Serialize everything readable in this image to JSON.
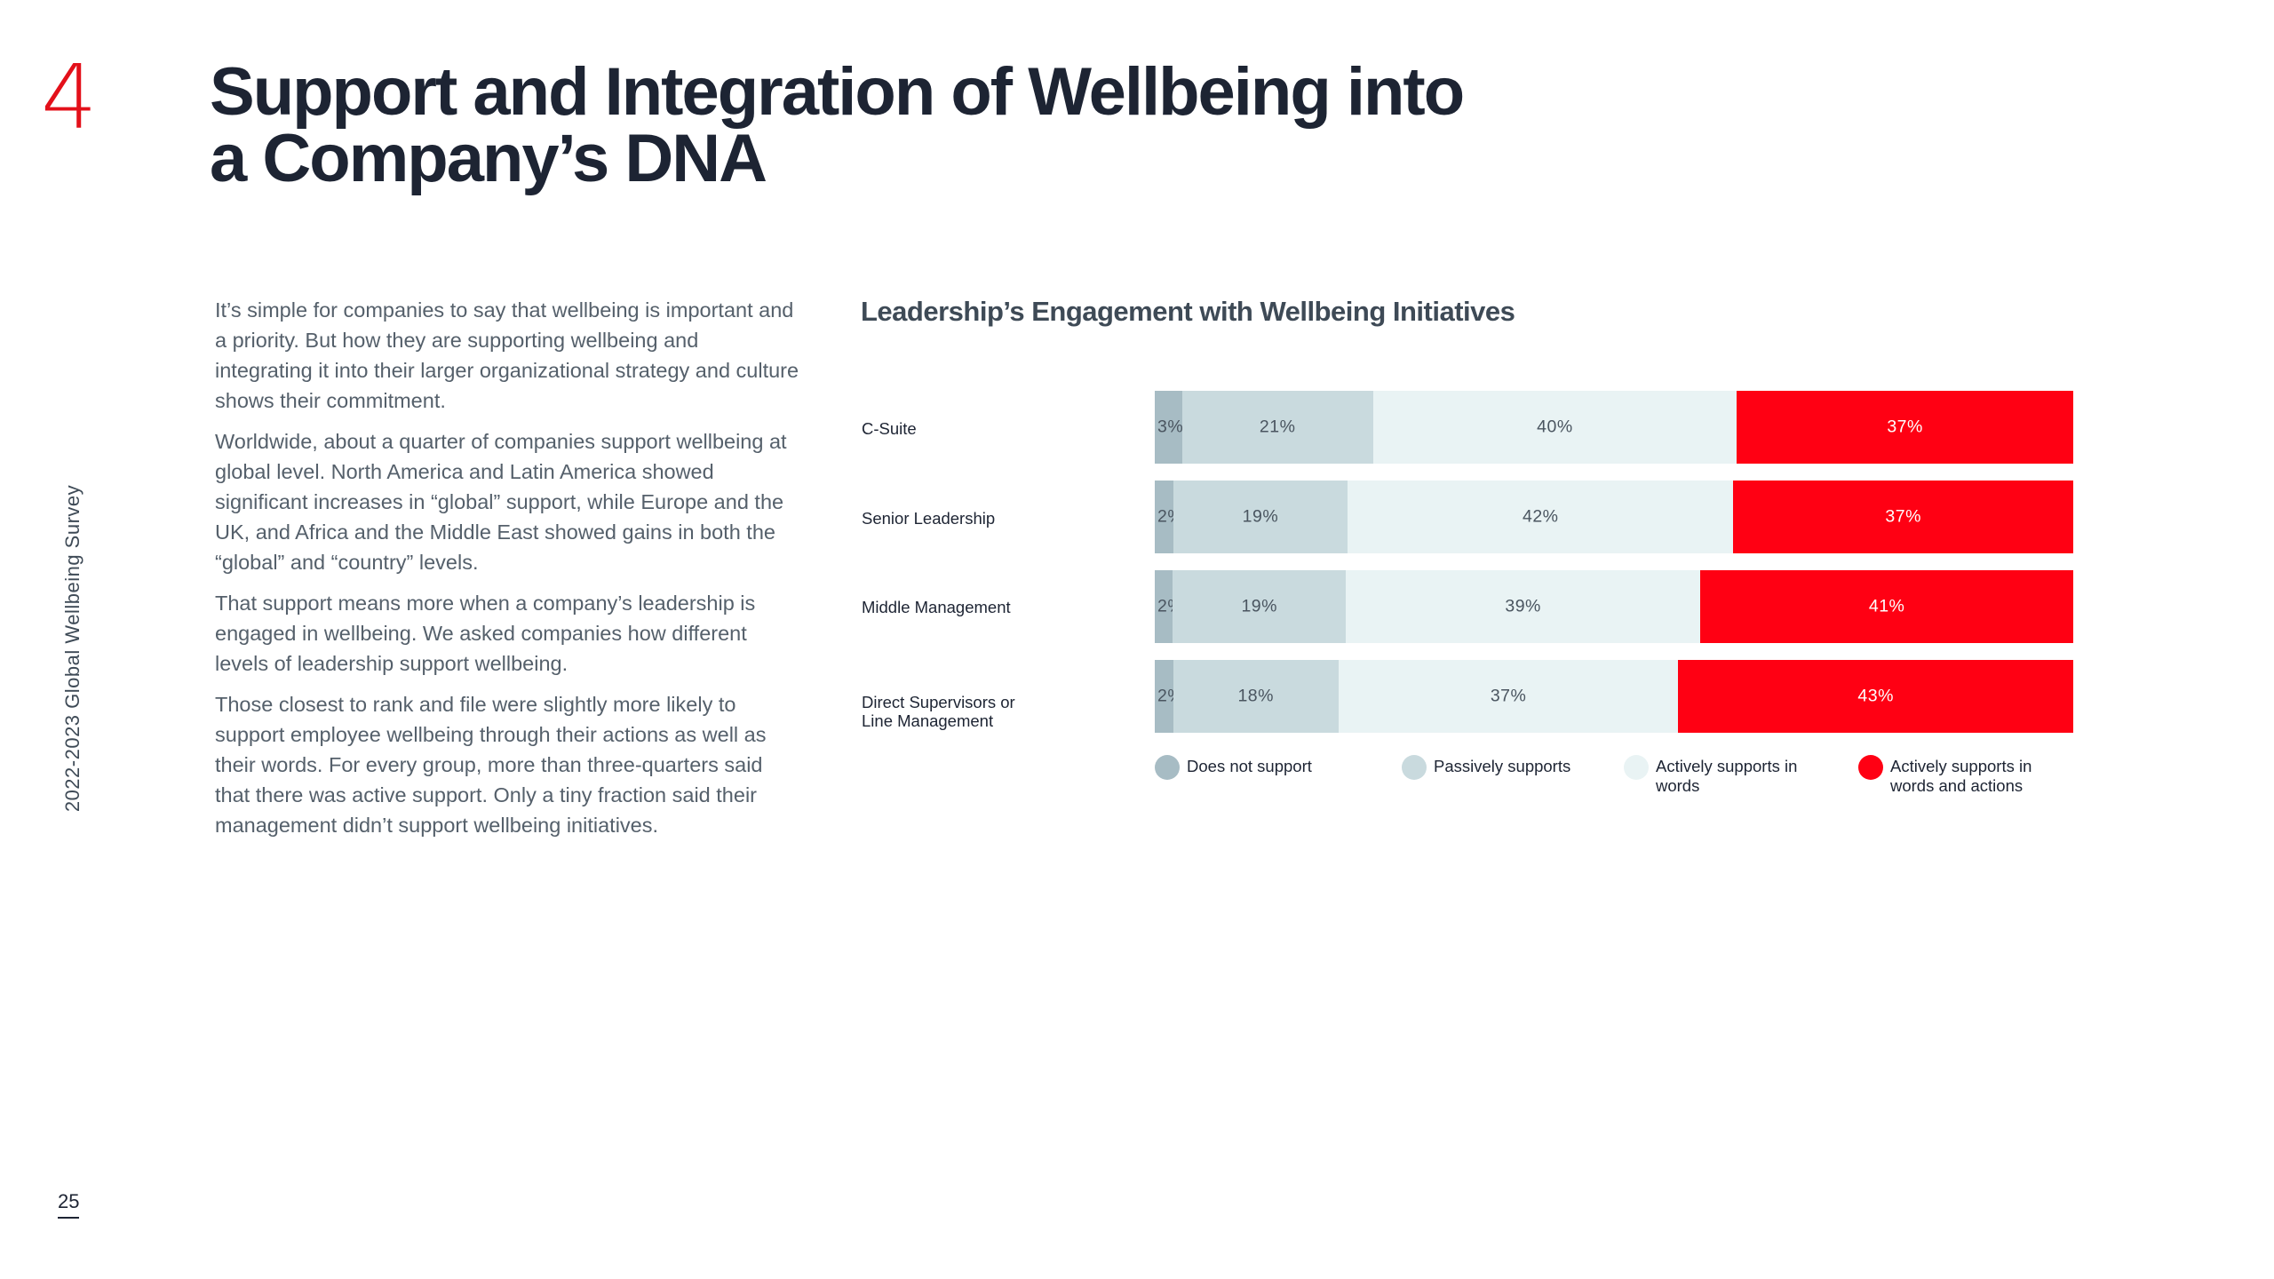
{
  "section_number": "4",
  "title": {
    "line1": "Support and Integration of Wellbeing into",
    "line2": "a Company’s DNA"
  },
  "side_label": "2022-2023 Global Wellbeing Survey",
  "page_number": "25",
  "body": {
    "p1": "It’s simple for companies to say that wellbeing is important and a priority. But how they are supporting wellbeing and integrating it into their larger organizational strategy and culture shows their commitment.",
    "p2": "Worldwide, about a quarter of companies support wellbeing at global level. North America and Latin America showed significant increases in “global” support, while Europe and the UK, and Africa and the Middle East showed gains in both the “global” and “country” levels.",
    "p3": "That support means more when a company’s leadership is engaged in wellbeing. We asked companies how different levels of leadership support wellbeing.",
    "p4": "Those closest to rank and file were slightly more likely to support employee wellbeing through their actions as well as their words. For every group, more than three-quarters said that there was active support. Only a tiny fraction said their management didn’t support wellbeing initiatives."
  },
  "chart_data": {
    "type": "bar",
    "orientation": "horizontal",
    "stacked": true,
    "title": "Leadership’s Engagement with Wellbeing Initiatives",
    "categories": [
      "C-Suite",
      "Senior Leadership",
      "Middle Management",
      "Direct Supervisors or Line Management"
    ],
    "series": [
      {
        "name": "Does not support",
        "color": "#a7bcc4",
        "values": [
          3,
          2,
          2,
          2
        ],
        "labels": [
          "3%",
          "2%",
          "2%",
          "2%"
        ]
      },
      {
        "name": "Passively supports",
        "color": "#c9dade",
        "values": [
          21,
          19,
          19,
          18
        ],
        "labels": [
          "21%",
          "19%",
          "19%",
          "18%"
        ]
      },
      {
        "name": "Actively supports in words",
        "color": "#e9f3f4",
        "values": [
          40,
          42,
          39,
          37
        ],
        "labels": [
          "40%",
          "42%",
          "39%",
          "37%"
        ]
      },
      {
        "name": "Actively supports in words and actions",
        "color": "#ff0013",
        "values": [
          37,
          37,
          41,
          43
        ],
        "labels": [
          "37%",
          "37%",
          "41%",
          "43%"
        ]
      }
    ],
    "legend": {
      "position": "bottom",
      "items": [
        "Does not support",
        "Passively supports",
        "Actively supports in words",
        "Actively supports in words and actions"
      ]
    },
    "xlim": [
      0,
      100
    ]
  }
}
